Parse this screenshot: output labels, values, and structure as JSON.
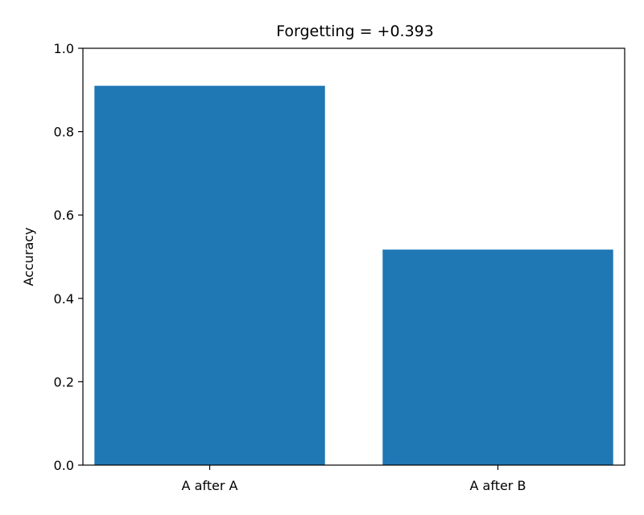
{
  "chart_data": {
    "type": "bar",
    "title": "Forgetting = +0.393",
    "xlabel": "",
    "ylabel": "Accuracy",
    "categories": [
      "A after A",
      "A after B"
    ],
    "values": [
      0.91,
      0.517
    ],
    "ylim": [
      0.0,
      1.0
    ],
    "yticks": [
      "0.0",
      "0.2",
      "0.4",
      "0.6",
      "0.8",
      "1.0"
    ],
    "ytick_values": [
      0.0,
      0.2,
      0.4,
      0.6,
      0.8,
      1.0
    ],
    "grid": false,
    "bar_color": "#1f77b4"
  }
}
